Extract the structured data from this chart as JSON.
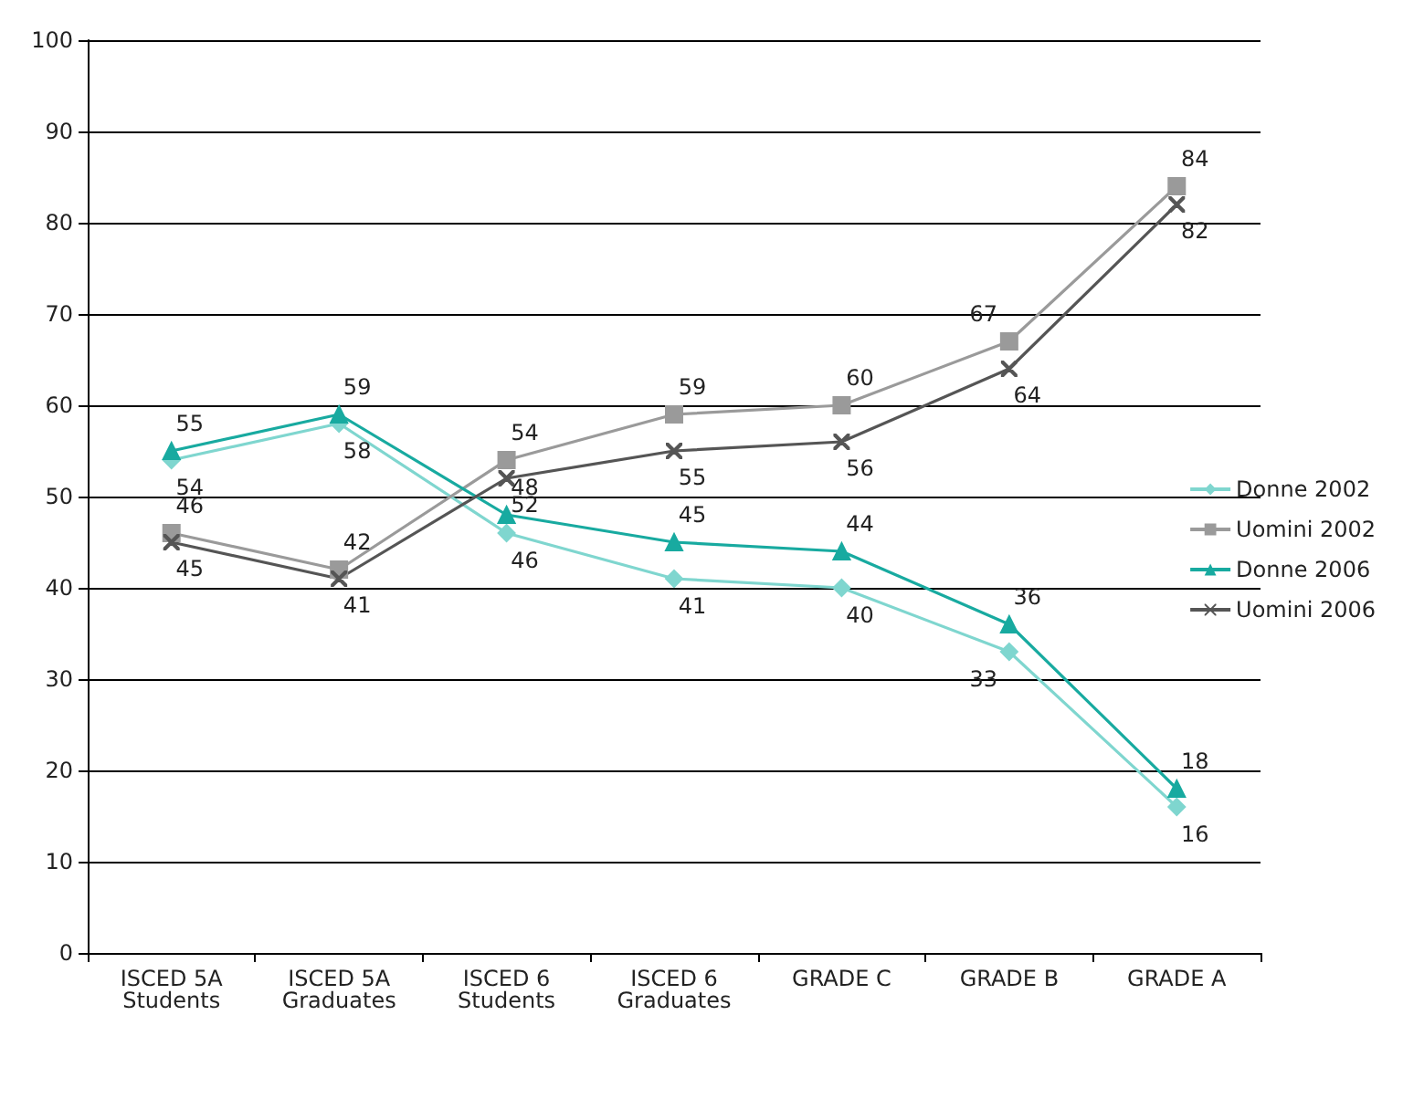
{
  "chart_data": {
    "type": "line",
    "categories": [
      "ISCED 5A\nStudents",
      "ISCED 5A\nGraduates",
      "ISCED 6\nStudents",
      "ISCED 6\nGraduates",
      "GRADE C",
      "GRADE B",
      "GRADE A"
    ],
    "series": [
      {
        "name": "Donne 2002",
        "color": "#7fd6cf",
        "marker": "diamond",
        "values": [
          54,
          58,
          46,
          41,
          40,
          33,
          16
        ]
      },
      {
        "name": "Uomini 2002",
        "color": "#9a9a9a",
        "marker": "square",
        "values": [
          46,
          42,
          54,
          59,
          60,
          67,
          84
        ]
      },
      {
        "name": "Donne 2006",
        "color": "#18aaa0",
        "marker": "triangle",
        "values": [
          55,
          59,
          48,
          45,
          44,
          36,
          18
        ]
      },
      {
        "name": "Uomini 2006",
        "color": "#555555",
        "marker": "cross",
        "values": [
          45,
          41,
          52,
          55,
          56,
          64,
          82
        ]
      }
    ],
    "ylim": [
      0,
      100
    ],
    "yticks": [
      0,
      10,
      20,
      30,
      40,
      50,
      60,
      70,
      80,
      90,
      100
    ],
    "grid": "y",
    "legend": "right",
    "data_labels": true
  }
}
